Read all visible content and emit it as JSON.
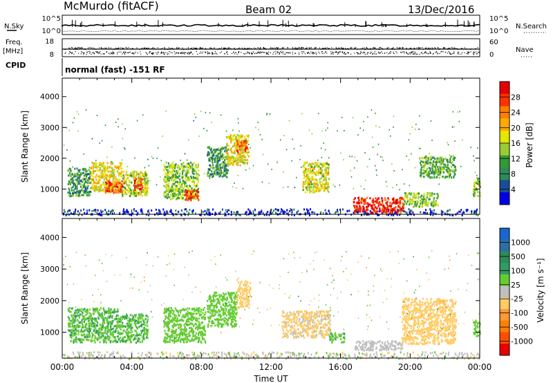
{
  "header": {
    "station": "McMurdo (fitACF)",
    "beam": "Beam 02",
    "date": "13/Dec/2016"
  },
  "top_strip": {
    "left_label": "N.Sky",
    "left_ticks": [
      "10^5",
      "10^0"
    ],
    "right_ticks": [
      "10^5",
      "10^0"
    ],
    "right_label": "N.Search"
  },
  "freq_strip": {
    "left_label_1": "Freq.",
    "left_label_2": "[MHz]",
    "left_ticks": [
      "18",
      "8"
    ],
    "right_ticks": [
      "60",
      "0"
    ],
    "right_label": "Nave"
  },
  "cpid_strip": {
    "label": "CPID",
    "program": "normal (fast) -151 RF"
  },
  "chart_data": [
    {
      "type": "heatmap",
      "name": "power",
      "xlabel": "",
      "ylabel": "Slant Range [km]",
      "x_range_hours": [
        0,
        24
      ],
      "ylim": [
        180,
        4600
      ],
      "y_ticks": [
        1000,
        2000,
        3000,
        4000
      ],
      "colorbar_label": "Power [dB]",
      "colorbar_ticks": [
        "28",
        "24",
        "20",
        "16",
        "12",
        "8",
        "4"
      ],
      "colorbar_colors": [
        "#e60000",
        "#ff3200",
        "#ff7f00",
        "#ffaa00",
        "#e6e600",
        "#99cc33",
        "#339933",
        "#2e8b57",
        "#1a4d99",
        "#0000e6"
      ],
      "regions": [
        {
          "t0": 0.3,
          "t1": 1.6,
          "r0": 800,
          "r1": 1700,
          "v": 10
        },
        {
          "t0": 1.6,
          "t1": 3.4,
          "r0": 950,
          "r1": 1900,
          "v": 18
        },
        {
          "t0": 2.4,
          "t1": 3.6,
          "r0": 900,
          "r1": 1300,
          "v": 26
        },
        {
          "t0": 3.4,
          "t1": 4.9,
          "r0": 800,
          "r1": 1600,
          "v": 16
        },
        {
          "t0": 4.1,
          "t1": 4.6,
          "r0": 1000,
          "r1": 1400,
          "v": 27
        },
        {
          "t0": 5.8,
          "t1": 7.8,
          "r0": 700,
          "r1": 1900,
          "v": 14
        },
        {
          "t0": 7.0,
          "t1": 7.8,
          "r0": 650,
          "r1": 1000,
          "v": 28
        },
        {
          "t0": 8.3,
          "t1": 9.5,
          "r0": 1400,
          "r1": 2400,
          "v": 10
        },
        {
          "t0": 9.4,
          "t1": 10.7,
          "r0": 1800,
          "r1": 2800,
          "v": 18
        },
        {
          "t0": 10.0,
          "t1": 10.6,
          "r0": 2200,
          "r1": 2600,
          "v": 25
        },
        {
          "t0": 13.8,
          "t1": 15.3,
          "r0": 900,
          "r1": 1900,
          "v": 17
        },
        {
          "t0": 16.7,
          "t1": 19.6,
          "r0": 250,
          "r1": 750,
          "v": 29
        },
        {
          "t0": 19.6,
          "t1": 21.6,
          "r0": 450,
          "r1": 900,
          "v": 14
        },
        {
          "t0": 20.5,
          "t1": 22.6,
          "r0": 1400,
          "r1": 2100,
          "v": 12
        },
        {
          "t0": 23.6,
          "t1": 24.0,
          "r0": 800,
          "r1": 1400,
          "v": 15
        }
      ],
      "ground_scatter_hours": [
        0,
        24
      ],
      "ground_scatter_range": [
        180,
        380
      ]
    },
    {
      "type": "heatmap",
      "name": "velocity",
      "xlabel": "Time UT",
      "ylabel": "Slant Range [km]",
      "x_range_hours": [
        0,
        24
      ],
      "ylim": [
        180,
        4600
      ],
      "x_ticks": [
        "00:00",
        "04:00",
        "08:00",
        "12:00",
        "16:00",
        "20:00",
        "00:00"
      ],
      "y_ticks": [
        1000,
        2000,
        3000,
        4000
      ],
      "colorbar_label": "Velocity [m s⁻¹]",
      "colorbar_ticks": [
        "1000",
        "500",
        "100",
        "25",
        "-25",
        "-100",
        "-500",
        "-1000"
      ],
      "colorbar_colors": [
        "#1a66cc",
        "#2e6ea8",
        "#2e8b57",
        "#339966",
        "#66cc33",
        "#bfbfbf",
        "#ffcc66",
        "#ff9933",
        "#ff7f00",
        "#ff4d00",
        "#e60000"
      ],
      "regions": [
        {
          "t0": 0.3,
          "t1": 3.2,
          "r0": 700,
          "r1": 1800,
          "v": 300
        },
        {
          "t0": 3.2,
          "t1": 4.9,
          "r0": 700,
          "r1": 1600,
          "v": 300
        },
        {
          "t0": 5.8,
          "t1": 8.2,
          "r0": 700,
          "r1": 1800,
          "v": 250
        },
        {
          "t0": 8.3,
          "t1": 10.0,
          "r0": 1200,
          "r1": 2300,
          "v": 250
        },
        {
          "t0": 10.0,
          "t1": 10.8,
          "r0": 1800,
          "r1": 2700,
          "v": -200
        },
        {
          "t0": 12.6,
          "t1": 15.4,
          "r0": 850,
          "r1": 1700,
          "v": -150
        },
        {
          "t0": 15.3,
          "t1": 16.2,
          "r0": 700,
          "r1": 1000,
          "v": 300
        },
        {
          "t0": 16.8,
          "t1": 19.6,
          "r0": 450,
          "r1": 750,
          "v": 0
        },
        {
          "t0": 19.5,
          "t1": 22.6,
          "r0": 650,
          "r1": 2100,
          "v": -250
        },
        {
          "t0": 23.6,
          "t1": 24.0,
          "r0": 900,
          "r1": 1400,
          "v": 250
        }
      ],
      "ground_scatter_hours": [
        0,
        24
      ],
      "ground_scatter_range": [
        180,
        400
      ]
    }
  ]
}
